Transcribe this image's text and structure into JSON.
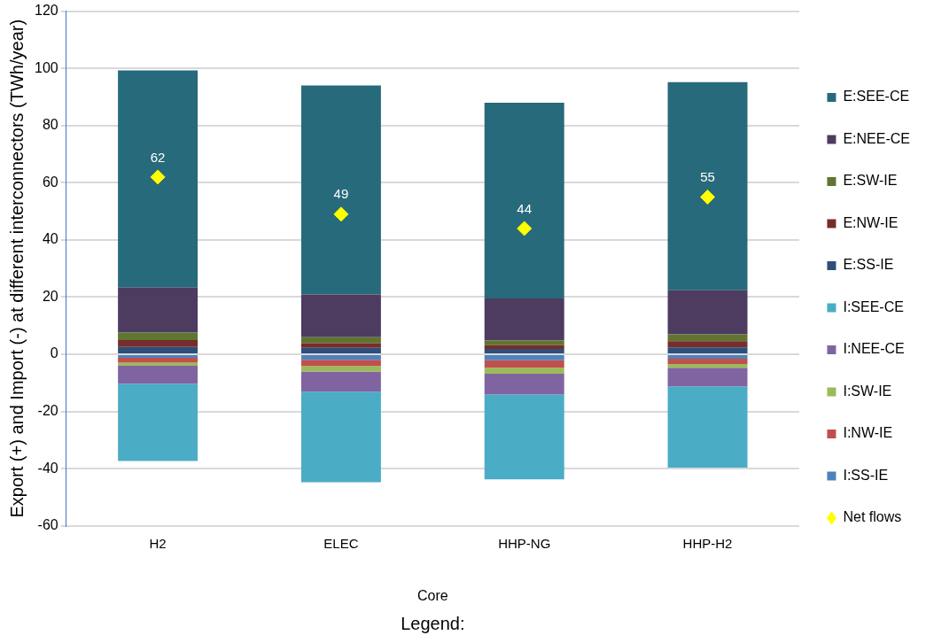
{
  "chart_data": {
    "type": "bar",
    "stacked": true,
    "xlabel": "Core",
    "ylabel": "Export (+) and Import (-) at different interconnectors (TWh/year)",
    "annotations": [
      "Legend:"
    ],
    "categories": [
      "H2",
      "ELEC",
      "HHP-NG",
      "HHP-H2"
    ],
    "ylim": [
      -60,
      120
    ],
    "yticks": [
      -60,
      -40,
      -20,
      0,
      20,
      40,
      60,
      80,
      100,
      120
    ],
    "grid": "y",
    "legend": "right",
    "series": [
      {
        "name": "E:SS-IE",
        "color": "#2d4f79",
        "values": [
          2.6,
          2.3,
          1.9,
          2.4
        ]
      },
      {
        "name": "E:NW-IE",
        "color": "#772d2b",
        "values": [
          2.4,
          1.6,
          1.3,
          2.2
        ]
      },
      {
        "name": "E:SW-IE",
        "color": "#5f7530",
        "values": [
          2.6,
          2.1,
          1.6,
          2.4
        ]
      },
      {
        "name": "E:NEE-CE",
        "color": "#4d3b60",
        "values": [
          15.7,
          14.9,
          14.7,
          15.4
        ]
      },
      {
        "name": "E:SEE-CE",
        "color": "#276a7b",
        "values": [
          76,
          73.1,
          68.5,
          72.8
        ]
      },
      {
        "name": "I:SS-IE",
        "color": "#4f81bd",
        "values": [
          -1.2,
          -1.9,
          -2.1,
          -1.5
        ]
      },
      {
        "name": "I:NW-IE",
        "color": "#c0504d",
        "values": [
          -1.7,
          -2.2,
          -2.6,
          -1.9
        ]
      },
      {
        "name": "I:SW-IE",
        "color": "#9bbb59",
        "values": [
          -1.1,
          -1.9,
          -2.1,
          -1.3
        ]
      },
      {
        "name": "I:NEE-CE",
        "color": "#8064a2",
        "values": [
          -6.3,
          -7.1,
          -7.3,
          -6.5
        ]
      },
      {
        "name": "I:SEE-CE",
        "color": "#4bacc6",
        "values": [
          -27,
          -31.6,
          -29.6,
          -28.4
        ]
      },
      {
        "name": "Net flows",
        "type": "scatter",
        "marker": "diamond",
        "color": "#ffff00",
        "values": [
          62,
          49,
          44,
          55
        ],
        "value_labels": [
          "62",
          "49",
          "44",
          "55"
        ]
      }
    ]
  }
}
